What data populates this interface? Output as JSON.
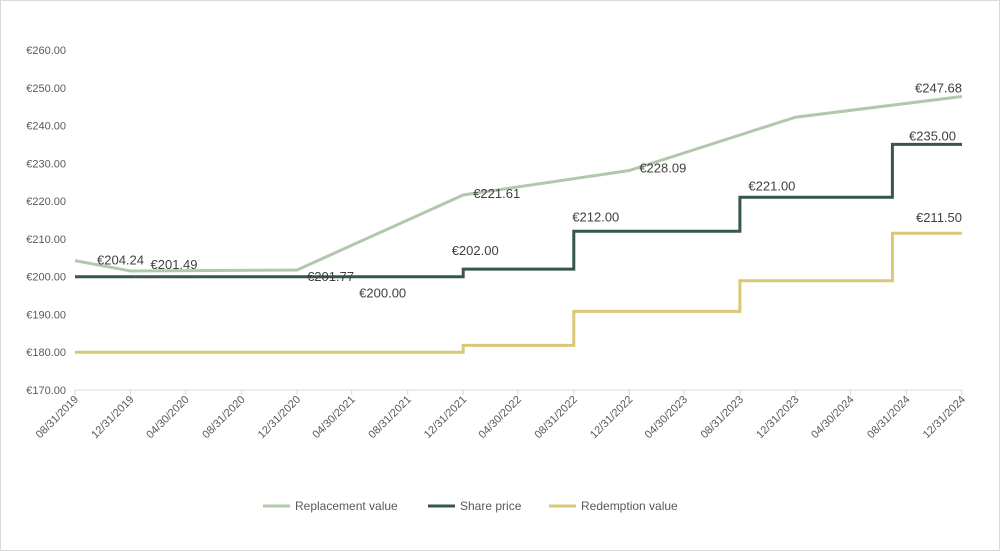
{
  "chart_data": {
    "type": "line",
    "title": "",
    "xlabel": "",
    "ylabel": "",
    "ylim": [
      170,
      260
    ],
    "y_ticks": [
      "€170.00",
      "€180.00",
      "€190.00",
      "€200.00",
      "€210.00",
      "€220.00",
      "€230.00",
      "€240.00",
      "€250.00",
      "€260.00"
    ],
    "x_ticks": [
      "08/31/2019",
      "12/31/2019",
      "04/30/2020",
      "08/31/2020",
      "12/31/2020",
      "04/30/2021",
      "08/31/2021",
      "12/31/2021",
      "04/30/2022",
      "08/31/2022",
      "12/31/2022",
      "04/30/2023",
      "08/31/2023",
      "12/31/2023",
      "04/30/2024",
      "08/31/2024",
      "12/31/2024"
    ],
    "grid": false,
    "legend_position": "bottom",
    "series": [
      {
        "name": "Replacement value",
        "color": "#b2c8ad",
        "step": false,
        "points": [
          {
            "x": "08/31/2019",
            "y": 204.24
          },
          {
            "x": "12/31/2019",
            "y": 201.49
          },
          {
            "x": "12/31/2020",
            "y": 201.77
          },
          {
            "x": "12/31/2021",
            "y": 221.61
          },
          {
            "x": "12/31/2022",
            "y": 228.09
          },
          {
            "x": "12/31/2023",
            "y": 242.2
          },
          {
            "x": "12/31/2024",
            "y": 247.68
          }
        ]
      },
      {
        "name": "Share price",
        "color": "#36574a",
        "step": true,
        "points": [
          {
            "x": "08/31/2019",
            "y": 200.0
          },
          {
            "x": "12/31/2021",
            "y": 202.0
          },
          {
            "x": "08/31/2022",
            "y": 212.0
          },
          {
            "x": "08/31/2023",
            "y": 221.0
          },
          {
            "x": "07/31/2024",
            "y": 235.0
          },
          {
            "x": "12/31/2024",
            "y": 235.0
          }
        ]
      },
      {
        "name": "Redemption value",
        "color": "#d8c878",
        "step": true,
        "points": [
          {
            "x": "08/31/2019",
            "y": 180.0
          },
          {
            "x": "12/31/2021",
            "y": 181.8
          },
          {
            "x": "08/31/2022",
            "y": 190.8
          },
          {
            "x": "08/31/2023",
            "y": 198.9
          },
          {
            "x": "07/31/2024",
            "y": 211.5
          },
          {
            "x": "12/31/2024",
            "y": 211.5
          }
        ]
      }
    ],
    "annotations": [
      {
        "text": "€204.24",
        "series": 0,
        "x": "08/31/2019",
        "y": 204.24
      },
      {
        "text": "€201.49",
        "series": 0,
        "x": "12/31/2019",
        "y": 201.49
      },
      {
        "text": "€201.77",
        "series": 0,
        "x": "12/31/2020",
        "y": 201.77
      },
      {
        "text": "€221.61",
        "series": 0,
        "x": "12/31/2021",
        "y": 221.61
      },
      {
        "text": "€228.09",
        "series": 0,
        "x": "12/31/2022",
        "y": 228.09
      },
      {
        "text": "€247.68",
        "series": 0,
        "x": "12/31/2024",
        "y": 247.68
      },
      {
        "text": "€200.00",
        "series": 1,
        "x": "08/31/2021",
        "y": 200.0
      },
      {
        "text": "€202.00",
        "series": 1,
        "x": "12/31/2021",
        "y": 202.0
      },
      {
        "text": "€212.00",
        "series": 1,
        "x": "08/31/2022",
        "y": 212.0
      },
      {
        "text": "€221.00",
        "series": 1,
        "x": "08/31/2023",
        "y": 221.0
      },
      {
        "text": "€235.00",
        "series": 1,
        "x": "12/31/2024",
        "y": 235.0
      },
      {
        "text": "€211.50",
        "series": 2,
        "x": "12/31/2024",
        "y": 211.5
      }
    ]
  }
}
